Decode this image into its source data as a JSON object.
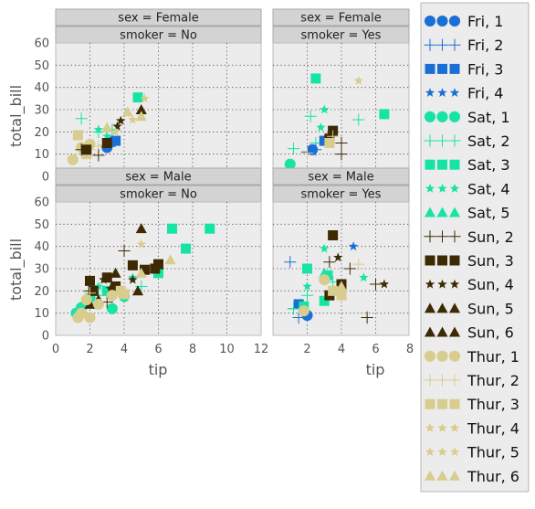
{
  "chart_data": {
    "type": "scatter",
    "xlabel": "tip",
    "ylabel": "total_bill",
    "xlim": [
      0,
      12
    ],
    "ylim": [
      0,
      60
    ],
    "xticks": [
      0,
      2,
      4,
      6,
      8,
      10,
      12
    ],
    "yticks": [
      0,
      10,
      20,
      30,
      40,
      50,
      60
    ],
    "x_tick_labels_left": [
      "0",
      "2",
      "4",
      "6",
      "8",
      "10",
      "12"
    ],
    "x_tick_labels_right": [
      "2",
      "4",
      "6",
      "8"
    ],
    "y_tick_labels": [
      "0",
      "10",
      "20",
      "30",
      "40",
      "50",
      "60"
    ],
    "grid": true,
    "legend_position": "right",
    "legend": [
      {
        "label": "Fri, 1",
        "color": "#1a6fd6",
        "marker": "circle"
      },
      {
        "label": "Fri, 2",
        "color": "#1a6fd6",
        "marker": "plus"
      },
      {
        "label": "Fri, 3",
        "color": "#1a6fd6",
        "marker": "square"
      },
      {
        "label": "Fri, 4",
        "color": "#1a6fd6",
        "marker": "star"
      },
      {
        "label": "Sat, 1",
        "color": "#17e3a5",
        "marker": "circle"
      },
      {
        "label": "Sat, 2",
        "color": "#17e3a5",
        "marker": "plus"
      },
      {
        "label": "Sat, 3",
        "color": "#17e3a5",
        "marker": "square"
      },
      {
        "label": "Sat, 4",
        "color": "#17e3a5",
        "marker": "star"
      },
      {
        "label": "Sat, 5",
        "color": "#17e3a5",
        "marker": "triangle"
      },
      {
        "label": "Sun, 2",
        "color": "#3d2a05",
        "marker": "plus"
      },
      {
        "label": "Sun, 3",
        "color": "#3d2a05",
        "marker": "square"
      },
      {
        "label": "Sun, 4",
        "color": "#3d2a05",
        "marker": "star"
      },
      {
        "label": "Sun, 5",
        "color": "#3d2a05",
        "marker": "triangle"
      },
      {
        "label": "Sun, 6",
        "color": "#3d2a05",
        "marker": "triangle"
      },
      {
        "label": "Thur, 1",
        "color": "#d8cc8e",
        "marker": "circle"
      },
      {
        "label": "Thur, 2",
        "color": "#d8cc8e",
        "marker": "plus"
      },
      {
        "label": "Thur, 3",
        "color": "#d8cc8e",
        "marker": "square"
      },
      {
        "label": "Thur, 4",
        "color": "#d8cc8e",
        "marker": "star"
      },
      {
        "label": "Thur, 5",
        "color": "#d8cc8e",
        "marker": "star"
      },
      {
        "label": "Thur, 6",
        "color": "#d8cc8e",
        "marker": "triangle"
      }
    ],
    "panels": [
      {
        "sex_label": "sex = Female",
        "smoker_label": "smoker = No",
        "points": [
          {
            "s": 14,
            "x": 1.0,
            "y": 7.5
          },
          {
            "s": 14,
            "x": 1.5,
            "y": 13.0
          },
          {
            "s": 14,
            "x": 2.0,
            "y": 14.5
          },
          {
            "s": 15,
            "x": 2.0,
            "y": 12.0
          },
          {
            "s": 15,
            "x": 2.5,
            "y": 13.5
          },
          {
            "s": 15,
            "x": 2.8,
            "y": 14.0
          },
          {
            "s": 5,
            "x": 1.5,
            "y": 26.0
          },
          {
            "s": 5,
            "x": 2.5,
            "y": 20.0
          },
          {
            "s": 5,
            "x": 3.3,
            "y": 21.0
          },
          {
            "s": 2,
            "x": 3.2,
            "y": 15.5
          },
          {
            "s": 2,
            "x": 3.5,
            "y": 16.0
          },
          {
            "s": 0,
            "x": 3.0,
            "y": 13.0
          },
          {
            "s": 6,
            "x": 4.8,
            "y": 35.5
          },
          {
            "s": 7,
            "x": 2.5,
            "y": 21.0
          },
          {
            "s": 7,
            "x": 3.0,
            "y": 18.0
          },
          {
            "s": 16,
            "x": 1.3,
            "y": 18.5
          },
          {
            "s": 16,
            "x": 1.8,
            "y": 10.0
          },
          {
            "s": 10,
            "x": 1.8,
            "y": 12.0
          },
          {
            "s": 10,
            "x": 3.0,
            "y": 15.0
          },
          {
            "s": 9,
            "x": 1.5,
            "y": 12.0
          },
          {
            "s": 9,
            "x": 2.5,
            "y": 9.5
          },
          {
            "s": 11,
            "x": 3.8,
            "y": 25.0
          },
          {
            "s": 11,
            "x": 3.6,
            "y": 22.5
          },
          {
            "s": 12,
            "x": 5.0,
            "y": 30.0
          },
          {
            "s": 17,
            "x": 3.5,
            "y": 20.0
          },
          {
            "s": 17,
            "x": 4.5,
            "y": 25.5
          },
          {
            "s": 18,
            "x": 5.2,
            "y": 35.0
          },
          {
            "s": 19,
            "x": 4.2,
            "y": 29.0
          },
          {
            "s": 19,
            "x": 3.0,
            "y": 22.0
          },
          {
            "s": 19,
            "x": 5.0,
            "y": 27.0
          }
        ]
      },
      {
        "sex_label": "sex = Female",
        "smoker_label": "smoker = Yes",
        "points": [
          {
            "s": 4,
            "x": 1.0,
            "y": 5.5
          },
          {
            "s": 8,
            "x": 1.0,
            "y": 3.5
          },
          {
            "s": 5,
            "x": 1.2,
            "y": 12.5
          },
          {
            "s": 5,
            "x": 2.2,
            "y": 27.0
          },
          {
            "s": 5,
            "x": 2.5,
            "y": 15.0
          },
          {
            "s": 5,
            "x": 5.0,
            "y": 25.5
          },
          {
            "s": 6,
            "x": 2.5,
            "y": 44.0
          },
          {
            "s": 6,
            "x": 6.5,
            "y": 28.0
          },
          {
            "s": 7,
            "x": 3.0,
            "y": 30.0
          },
          {
            "s": 7,
            "x": 2.8,
            "y": 22.0
          },
          {
            "s": 1,
            "x": 2.0,
            "y": 11.0
          },
          {
            "s": 1,
            "x": 2.5,
            "y": 12.0
          },
          {
            "s": 2,
            "x": 3.0,
            "y": 16.0
          },
          {
            "s": 0,
            "x": 2.3,
            "y": 12.0
          },
          {
            "s": 9,
            "x": 4.0,
            "y": 10.0
          },
          {
            "s": 9,
            "x": 4.0,
            "y": 15.0
          },
          {
            "s": 10,
            "x": 3.5,
            "y": 20.5
          },
          {
            "s": 10,
            "x": 3.3,
            "y": 17.0
          },
          {
            "s": 15,
            "x": 2.0,
            "y": 10.5
          },
          {
            "s": 15,
            "x": 3.5,
            "y": 18.0
          },
          {
            "s": 17,
            "x": 5.0,
            "y": 43.0
          },
          {
            "s": 16,
            "x": 3.3,
            "y": 15.0
          }
        ]
      },
      {
        "sex_label": "sex = Male",
        "smoker_label": "smoker = No",
        "points": [
          {
            "s": 4,
            "x": 1.2,
            "y": 10.0
          },
          {
            "s": 4,
            "x": 2.0,
            "y": 17.0
          },
          {
            "s": 4,
            "x": 3.3,
            "y": 12.0
          },
          {
            "s": 4,
            "x": 4.0,
            "y": 17.5
          },
          {
            "s": 4,
            "x": 1.5,
            "y": 12.5
          },
          {
            "s": 5,
            "x": 2.5,
            "y": 18.0
          },
          {
            "s": 5,
            "x": 3.5,
            "y": 20.0
          },
          {
            "s": 5,
            "x": 5.0,
            "y": 22.0
          },
          {
            "s": 6,
            "x": 3.0,
            "y": 20.0
          },
          {
            "s": 6,
            "x": 6.8,
            "y": 48.0
          },
          {
            "s": 6,
            "x": 7.6,
            "y": 39.0
          },
          {
            "s": 6,
            "x": 9.0,
            "y": 48.0
          },
          {
            "s": 6,
            "x": 6.0,
            "y": 28.0
          },
          {
            "s": 7,
            "x": 2.5,
            "y": 22.0
          },
          {
            "s": 7,
            "x": 4.5,
            "y": 26.0
          },
          {
            "s": 9,
            "x": 4.0,
            "y": 38.0
          },
          {
            "s": 9,
            "x": 2.0,
            "y": 20.0
          },
          {
            "s": 9,
            "x": 3.0,
            "y": 15.0
          },
          {
            "s": 10,
            "x": 2.0,
            "y": 24.5
          },
          {
            "s": 10,
            "x": 3.0,
            "y": 26.0
          },
          {
            "s": 10,
            "x": 4.5,
            "y": 31.5
          },
          {
            "s": 10,
            "x": 5.2,
            "y": 29.5
          },
          {
            "s": 10,
            "x": 6.0,
            "y": 32.0
          },
          {
            "s": 10,
            "x": 2.2,
            "y": 20.0
          },
          {
            "s": 10,
            "x": 3.5,
            "y": 22.0
          },
          {
            "s": 10,
            "x": 5.8,
            "y": 30.0
          },
          {
            "s": 11,
            "x": 2.8,
            "y": 25.0
          },
          {
            "s": 11,
            "x": 4.5,
            "y": 25.0
          },
          {
            "s": 11,
            "x": 3.2,
            "y": 21.0
          },
          {
            "s": 12,
            "x": 5.0,
            "y": 48.0
          },
          {
            "s": 12,
            "x": 3.5,
            "y": 28.0
          },
          {
            "s": 12,
            "x": 4.8,
            "y": 20.0
          },
          {
            "s": 13,
            "x": 2.0,
            "y": 14.0
          },
          {
            "s": 13,
            "x": 2.5,
            "y": 16.0
          },
          {
            "s": 14,
            "x": 1.5,
            "y": 10.0
          },
          {
            "s": 14,
            "x": 1.8,
            "y": 16.0
          },
          {
            "s": 14,
            "x": 2.0,
            "y": 8.0
          },
          {
            "s": 14,
            "x": 1.3,
            "y": 8.0
          },
          {
            "s": 14,
            "x": 3.3,
            "y": 18.0
          },
          {
            "s": 14,
            "x": 2.5,
            "y": 14.0
          },
          {
            "s": 15,
            "x": 2.0,
            "y": 19.0
          },
          {
            "s": 16,
            "x": 3.8,
            "y": 20.0
          },
          {
            "s": 16,
            "x": 4.0,
            "y": 18.5
          },
          {
            "s": 18,
            "x": 5.0,
            "y": 41.0
          },
          {
            "s": 19,
            "x": 6.7,
            "y": 34.0
          },
          {
            "s": 19,
            "x": 5.0,
            "y": 28.0
          }
        ]
      },
      {
        "sex_label": "sex = Male",
        "smoker_label": "smoker = Yes",
        "points": [
          {
            "s": 0,
            "x": 2.0,
            "y": 9.0
          },
          {
            "s": 1,
            "x": 1.0,
            "y": 33.0
          },
          {
            "s": 1,
            "x": 1.2,
            "y": 12.0
          },
          {
            "s": 1,
            "x": 1.5,
            "y": 8.0
          },
          {
            "s": 2,
            "x": 1.5,
            "y": 14.0
          },
          {
            "s": 3,
            "x": 4.7,
            "y": 40.0
          },
          {
            "s": 5,
            "x": 2.0,
            "y": 18.0
          },
          {
            "s": 5,
            "x": 3.5,
            "y": 24.0
          },
          {
            "s": 5,
            "x": 1.2,
            "y": 12.0
          },
          {
            "s": 6,
            "x": 2.0,
            "y": 30.0
          },
          {
            "s": 6,
            "x": 3.0,
            "y": 15.5
          },
          {
            "s": 6,
            "x": 3.2,
            "y": 27.0
          },
          {
            "s": 6,
            "x": 1.8,
            "y": 13.0
          },
          {
            "s": 7,
            "x": 2.0,
            "y": 22.0
          },
          {
            "s": 7,
            "x": 3.0,
            "y": 39.0
          },
          {
            "s": 7,
            "x": 5.3,
            "y": 26.0
          },
          {
            "s": 8,
            "x": 3.0,
            "y": 28.0
          },
          {
            "s": 9,
            "x": 3.3,
            "y": 33.0
          },
          {
            "s": 9,
            "x": 4.5,
            "y": 30.0
          },
          {
            "s": 9,
            "x": 5.5,
            "y": 8.0
          },
          {
            "s": 9,
            "x": 6.0,
            "y": 23.0
          },
          {
            "s": 10,
            "x": 3.5,
            "y": 45.0
          },
          {
            "s": 10,
            "x": 4.0,
            "y": 23.0
          },
          {
            "s": 10,
            "x": 3.3,
            "y": 18.0
          },
          {
            "s": 11,
            "x": 6.5,
            "y": 23.0
          },
          {
            "s": 11,
            "x": 3.8,
            "y": 35.0
          },
          {
            "s": 14,
            "x": 1.8,
            "y": 11.0
          },
          {
            "s": 14,
            "x": 3.0,
            "y": 25.0
          },
          {
            "s": 15,
            "x": 5.0,
            "y": 32.0
          },
          {
            "s": 16,
            "x": 4.0,
            "y": 18.0
          },
          {
            "s": 16,
            "x": 3.5,
            "y": 20.0
          },
          {
            "s": 19,
            "x": 4.0,
            "y": 22.0
          }
        ]
      }
    ]
  }
}
